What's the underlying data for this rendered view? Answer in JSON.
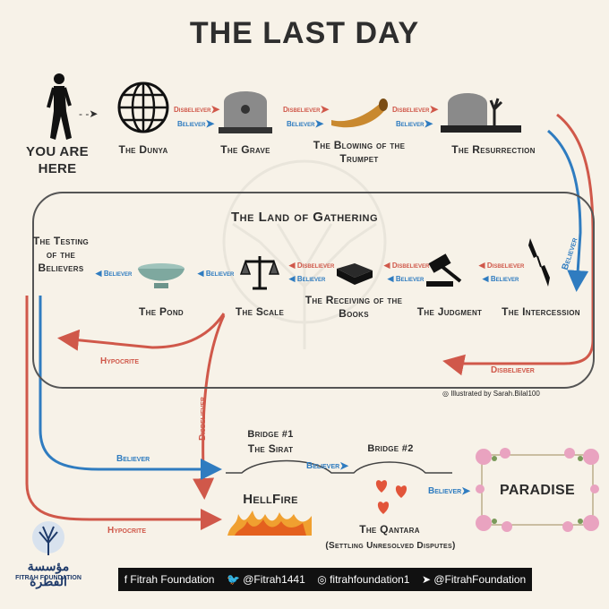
{
  "title": "THE LAST DAY",
  "stages": {
    "you_are_here": "YOU ARE HERE",
    "dunya": "The Dunya",
    "grave": "The Grave",
    "trumpet": "The Blowing of the Trumpet",
    "resurrection": "The Resurrection",
    "testing": "The Testing of the Believers",
    "pond": "The Pond",
    "scale": "The Scale",
    "books": "The Receiving of the Books",
    "judgment": "The Judgment",
    "intercession": "The Intercession",
    "bridge1": "Bridge #1",
    "sirat": "The Sirat",
    "bridge2": "Bridge #2",
    "hellfire": "HellFire",
    "qantara": "The Qantara",
    "qantara_sub": "(Settling Unresolved Disputes)",
    "paradise": "PARADISE"
  },
  "land_of_gathering": "The Land of Gathering",
  "tags": {
    "disbeliever": "Disbeliever",
    "believer": "Believer",
    "hypocrite": "Hypocrite"
  },
  "credit": "Illustrated by Sarah.Bilal100",
  "footer": {
    "facebook": "Fitrah Foundation",
    "twitter": "@Fitrah1441",
    "instagram": "fitrahfoundation1",
    "telegram": "@FitrahFoundation"
  },
  "logo": {
    "arabic": "مؤسسة الفطرة",
    "english": "FITRAH FOUNDATION"
  },
  "colors": {
    "red": "#d0584a",
    "blue": "#2f7cc0",
    "background": "#f7f2e8"
  }
}
